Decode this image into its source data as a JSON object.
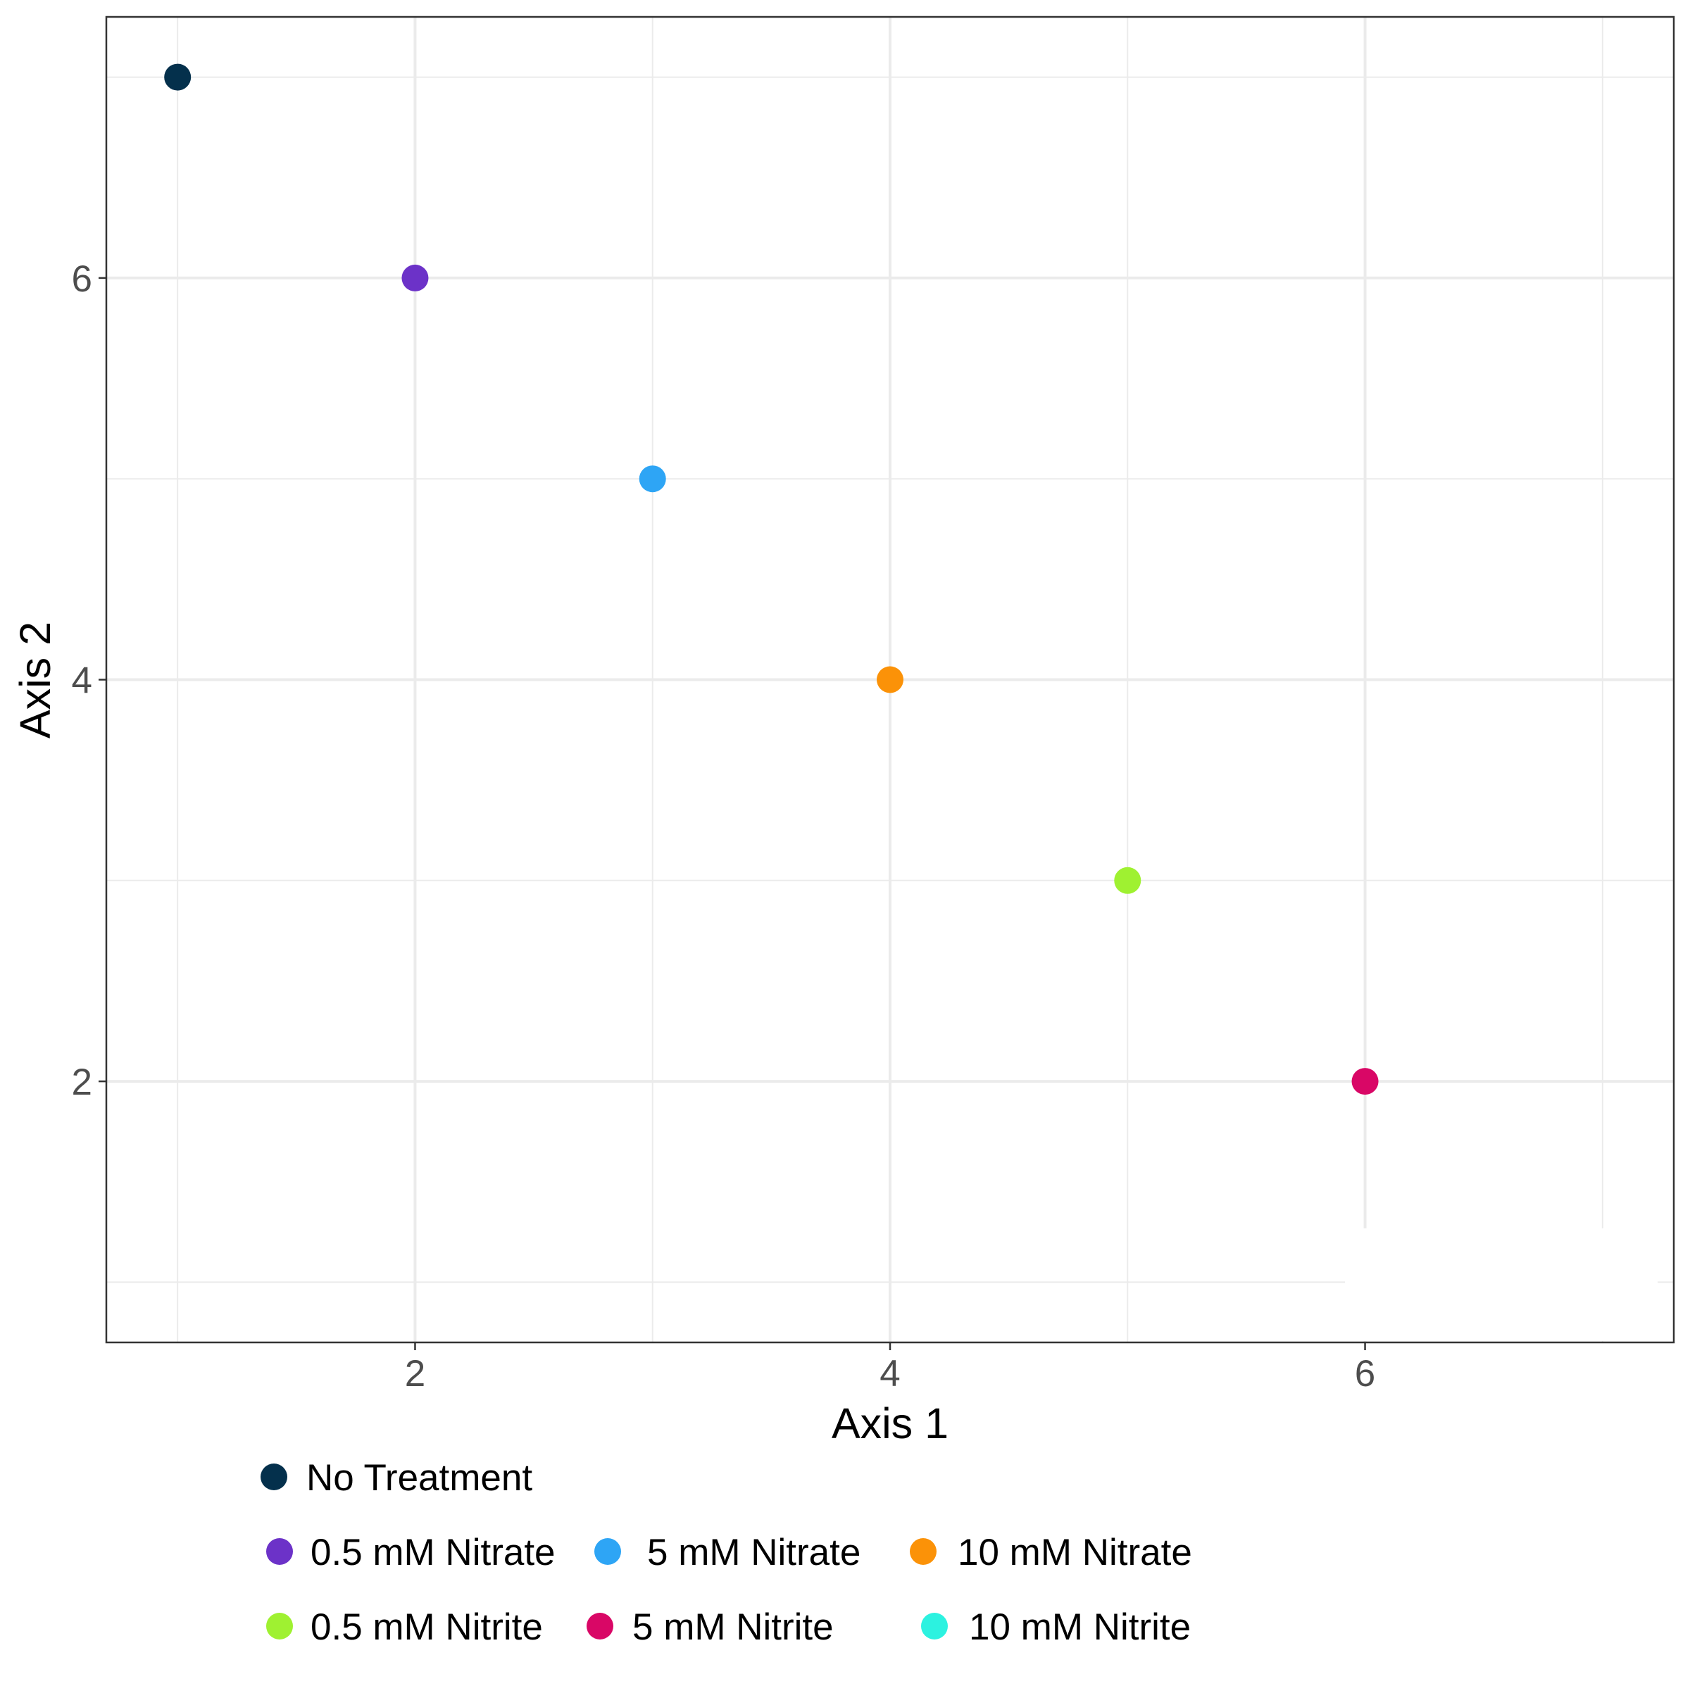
{
  "chart_data": {
    "type": "scatter",
    "title": "",
    "xlabel": "Axis 1",
    "ylabel": "Axis 2",
    "xlim": [
      0.7,
      7.3
    ],
    "ylim": [
      0.7,
      7.3
    ],
    "x_ticks": [
      2,
      4,
      6
    ],
    "y_ticks": [
      2,
      4,
      6
    ],
    "grid": true,
    "legend_position": "bottom",
    "series": [
      {
        "name": "No Treatment",
        "color": "#04304C",
        "points": [
          {
            "x": 1,
            "y": 7
          }
        ]
      },
      {
        "name": "0.5 mM Nitrate",
        "color": "#6C32C8",
        "points": [
          {
            "x": 2,
            "y": 6
          }
        ]
      },
      {
        "name": "5 mM Nitrate",
        "color": "#2EA5F5",
        "points": [
          {
            "x": 3,
            "y": 5
          }
        ]
      },
      {
        "name": "10 mM Nitrate",
        "color": "#FB9208",
        "points": [
          {
            "x": 4,
            "y": 4
          }
        ]
      },
      {
        "name": "0.5 mM Nitrite",
        "color": "#9FF131",
        "points": [
          {
            "x": 5,
            "y": 3
          }
        ]
      },
      {
        "name": "5 mM Nitrite",
        "color": "#D90766",
        "points": [
          {
            "x": 6,
            "y": 2
          }
        ]
      },
      {
        "name": "10 mM Nitrite",
        "color": "#2CF2E0",
        "points": []
      }
    ]
  }
}
